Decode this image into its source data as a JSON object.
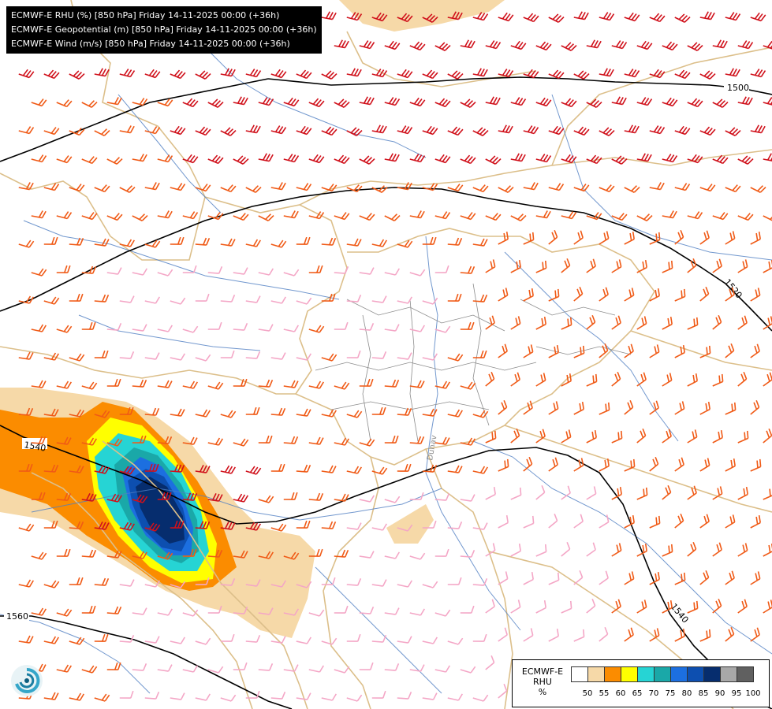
{
  "header": {
    "lines": [
      "ECMWF-E RHU (%) [850 hPa] Friday 14-11-2025 00:00 (+36h)",
      "ECMWF-E Geopotential (m) [850 hPa] Friday 14-11-2025 00:00 (+36h)",
      "ECMWF-E Wind (m/s) [850 hPa] Friday 14-11-2025 00:00 (+36h)"
    ]
  },
  "contours": {
    "labels": [
      "1500",
      "1520",
      "1540",
      "1560",
      "1540"
    ]
  },
  "map_text": {
    "river_label": "Dunav"
  },
  "legend": {
    "title_lines": [
      "ECMWF-E",
      "RHU",
      "%"
    ],
    "colors": [
      "#ffffff",
      "#f6d9a8",
      "#fb8c00",
      "#ffff00",
      "#26d4d4",
      "#1aa8a8",
      "#1c6fe0",
      "#0d4fb0",
      "#062d6e",
      "#a8a8a8",
      "#606060"
    ],
    "ticks": [
      "50",
      "55",
      "60",
      "65",
      "70",
      "75",
      "80",
      "85",
      "90",
      "95",
      "100"
    ]
  },
  "colors": {
    "border_tan": "#dcbf8a",
    "river_blue": "#4f7ec2",
    "wind_strong": "#d0111b",
    "wind_medium": "#f05a16",
    "wind_light": "#f4a6c6",
    "contour": "#000000"
  },
  "icons": {
    "logo": "meteo-swirl-logo"
  }
}
